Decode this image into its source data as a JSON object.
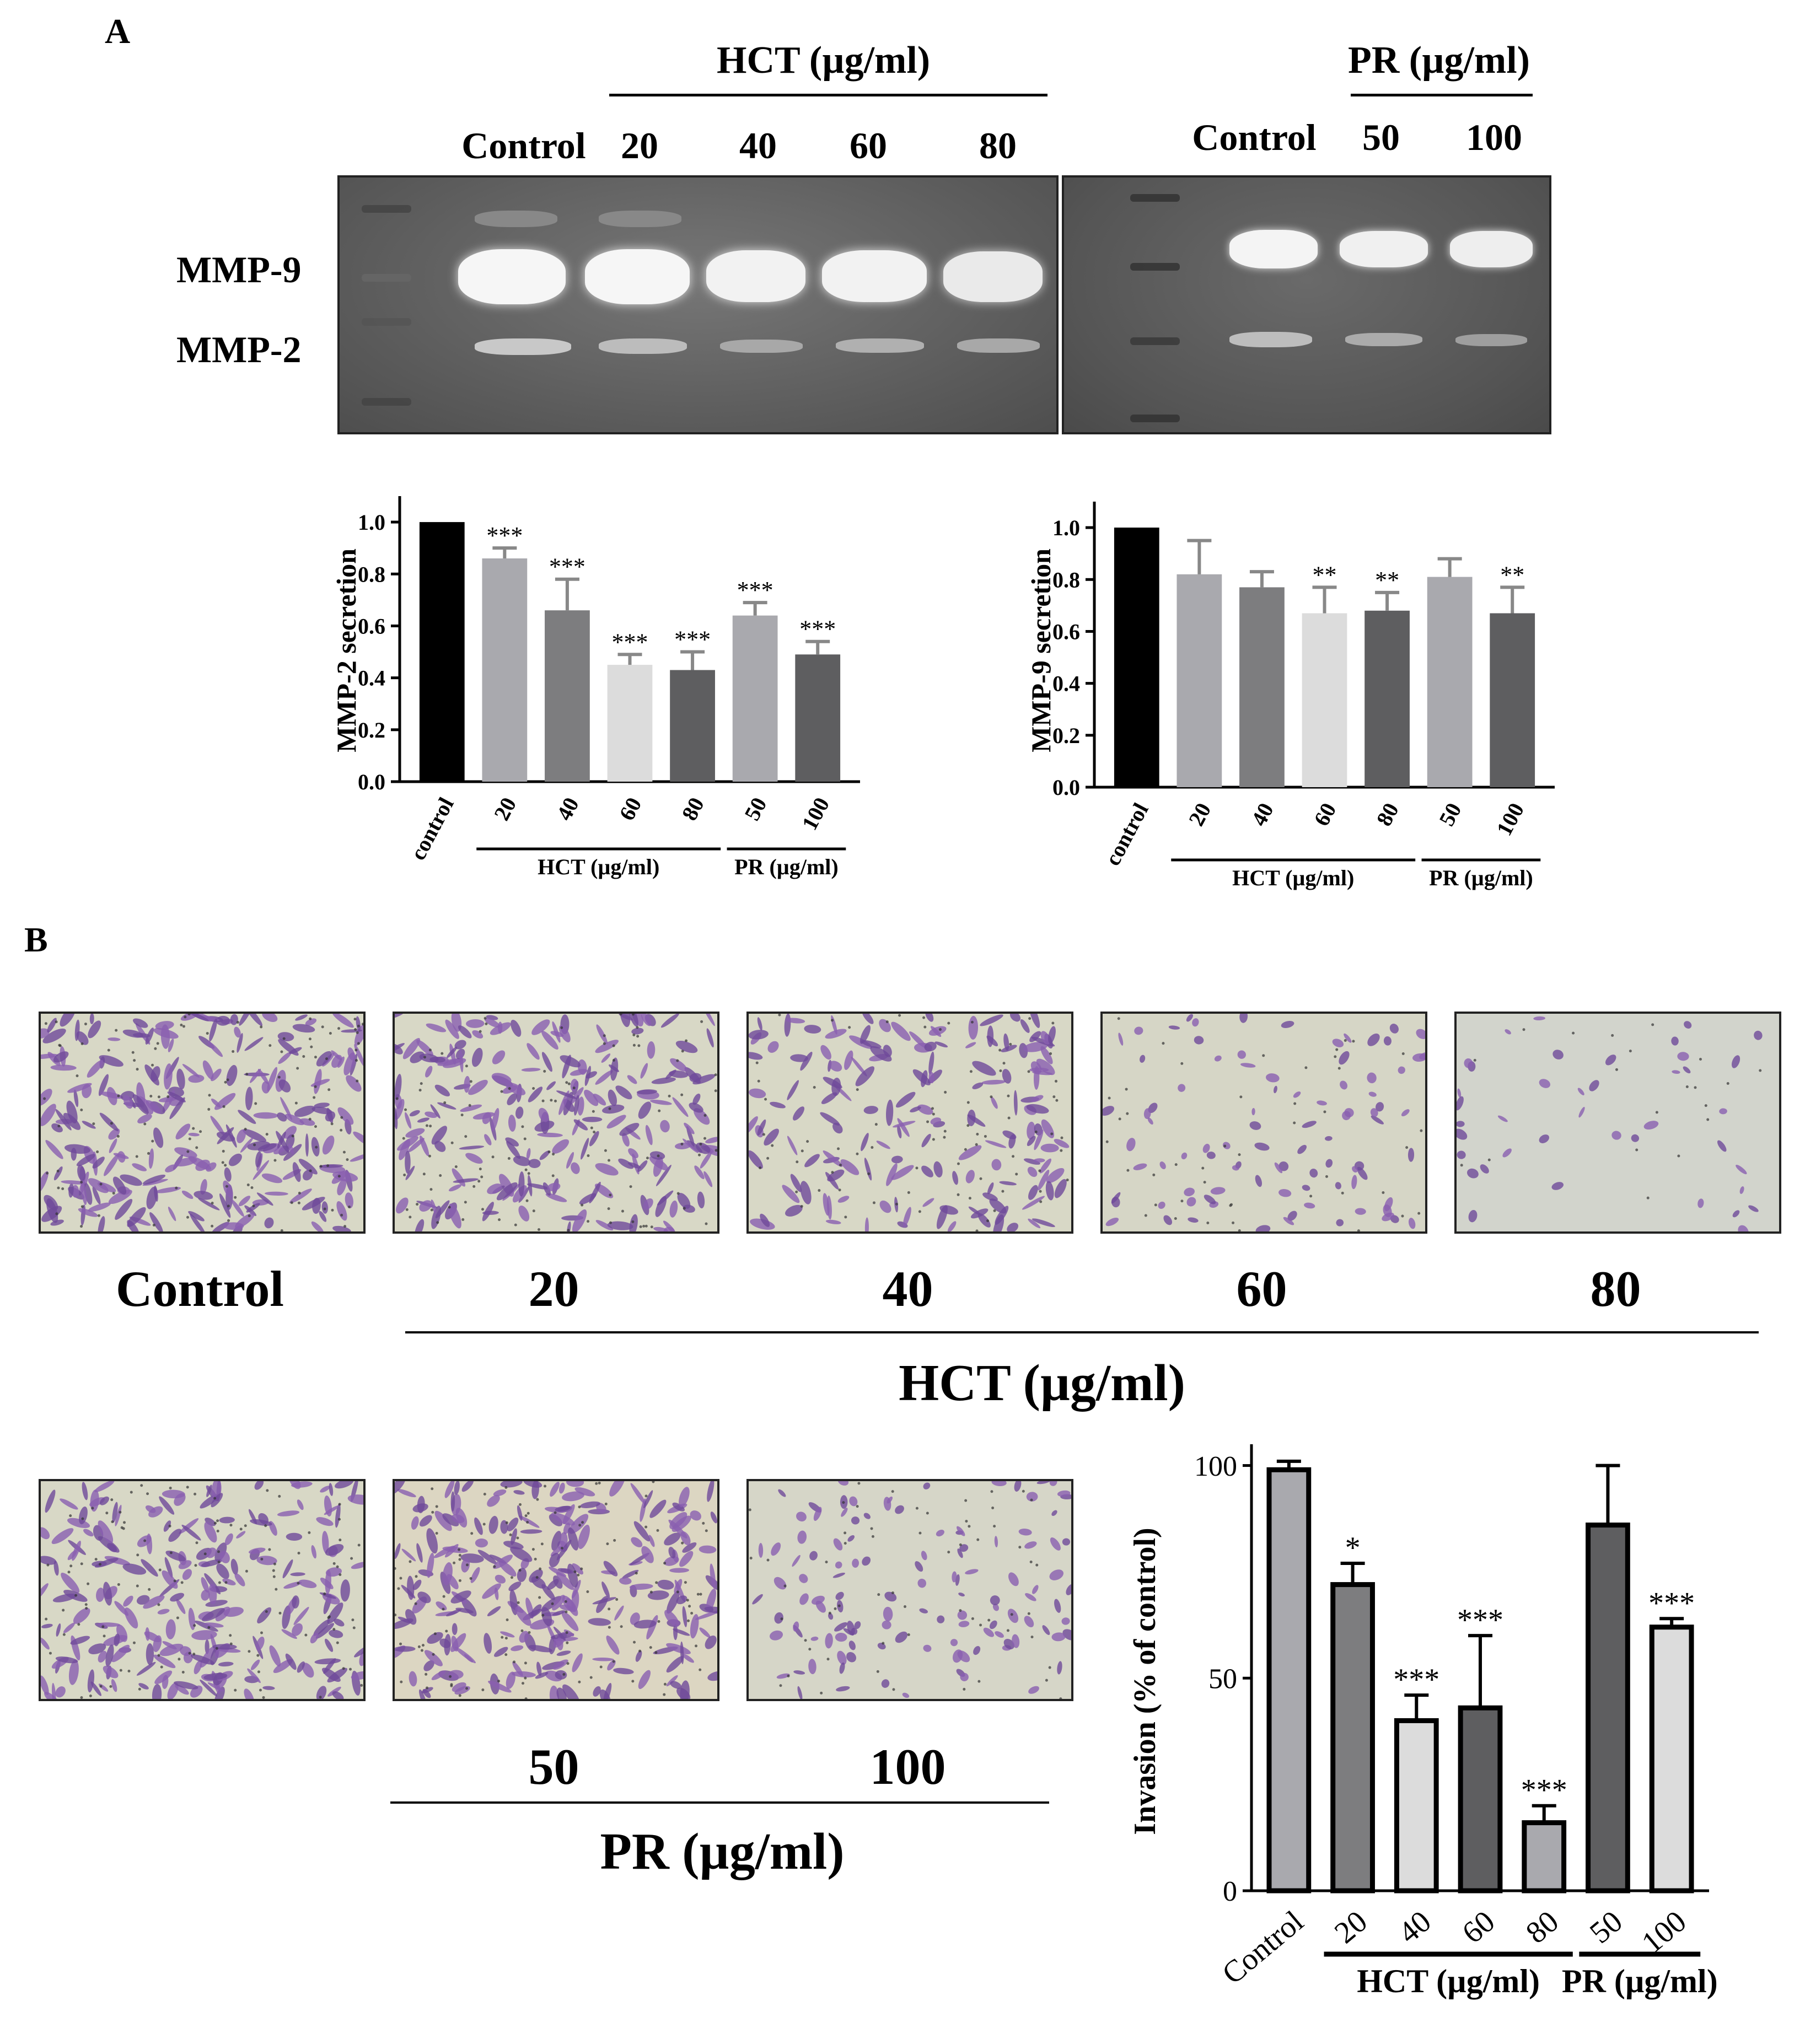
{
  "panel_labels": {
    "a": "A",
    "b": "B"
  },
  "gel": {
    "hct_header": "HCT (µg/ml)",
    "pr_header": "PR (µg/ml)",
    "hct_lanes": [
      "Control",
      "20",
      "40",
      "60",
      "80"
    ],
    "pr_lanes": [
      "Control",
      "50",
      "100"
    ],
    "band_labels": [
      "MMP-9",
      "MMP-2"
    ]
  },
  "photos": {
    "row1_labels": [
      "Control",
      "20",
      "40",
      "60",
      "80"
    ],
    "row1_group": "HCT (µg/ml)",
    "row2_labels": [
      "50",
      "100"
    ],
    "row2_group": "PR (µg/ml)"
  },
  "colors": {
    "black": "#000000",
    "gray_light": "#a9a9ae",
    "gray_mid": "#7d7d7f",
    "gray_pale": "#dcdcdc",
    "gray_dark": "#5e5e60",
    "band": "#f2f2f2"
  },
  "chart_data": [
    {
      "type": "bar",
      "ylabel": "MMP-2 secretion",
      "categories": [
        "control",
        "20",
        "40",
        "60",
        "80",
        "50",
        "100"
      ],
      "values": [
        1.0,
        0.86,
        0.66,
        0.45,
        0.43,
        0.64,
        0.49
      ],
      "errors": [
        0,
        0.04,
        0.12,
        0.04,
        0.07,
        0.05,
        0.05
      ],
      "significance": [
        "",
        "***",
        "***",
        "***",
        "***",
        "***",
        "***"
      ],
      "group_labels": [
        {
          "label": "HCT (µg/ml)",
          "from": 1,
          "to": 4
        },
        {
          "label": "PR (µg/ml)",
          "from": 5,
          "to": 6
        }
      ],
      "ylim": [
        0,
        1.1
      ],
      "yticks": [
        "0.0",
        "0.2",
        "0.4",
        "0.6",
        "0.8",
        "1.0"
      ]
    },
    {
      "type": "bar",
      "ylabel": "MMP-9 secretion",
      "categories": [
        "control",
        "20",
        "40",
        "60",
        "80",
        "50",
        "100"
      ],
      "values": [
        1.0,
        0.82,
        0.77,
        0.67,
        0.68,
        0.81,
        0.67
      ],
      "errors": [
        0,
        0.13,
        0.06,
        0.1,
        0.07,
        0.07,
        0.1
      ],
      "significance": [
        "",
        "",
        "",
        "**",
        "**",
        "",
        "**"
      ],
      "group_labels": [
        {
          "label": "HCT (µg/ml)",
          "from": 1,
          "to": 4
        },
        {
          "label": "PR (µg/ml)",
          "from": 5,
          "to": 6
        }
      ],
      "ylim": [
        0,
        1.1
      ],
      "yticks": [
        "0.0",
        "0.2",
        "0.4",
        "0.6",
        "0.8",
        "1.0"
      ]
    },
    {
      "type": "bar",
      "ylabel": "Invasion (% of control)",
      "categories": [
        "Control",
        "20",
        "40",
        "60",
        "80",
        "50",
        "100"
      ],
      "values": [
        99,
        72,
        40,
        43,
        16,
        86,
        62
      ],
      "errors": [
        2,
        5,
        6,
        17,
        4,
        14,
        2
      ],
      "significance": [
        "",
        "*",
        "***",
        "***",
        "***",
        "",
        "***"
      ],
      "group_labels": [
        {
          "label": "HCT (µg/ml)",
          "from": 1,
          "to": 4
        },
        {
          "label": "PR (µg/ml)",
          "from": 5,
          "to": 6
        }
      ],
      "ylim": [
        0,
        105
      ],
      "yticks": [
        "0",
        "50",
        "100"
      ]
    }
  ]
}
